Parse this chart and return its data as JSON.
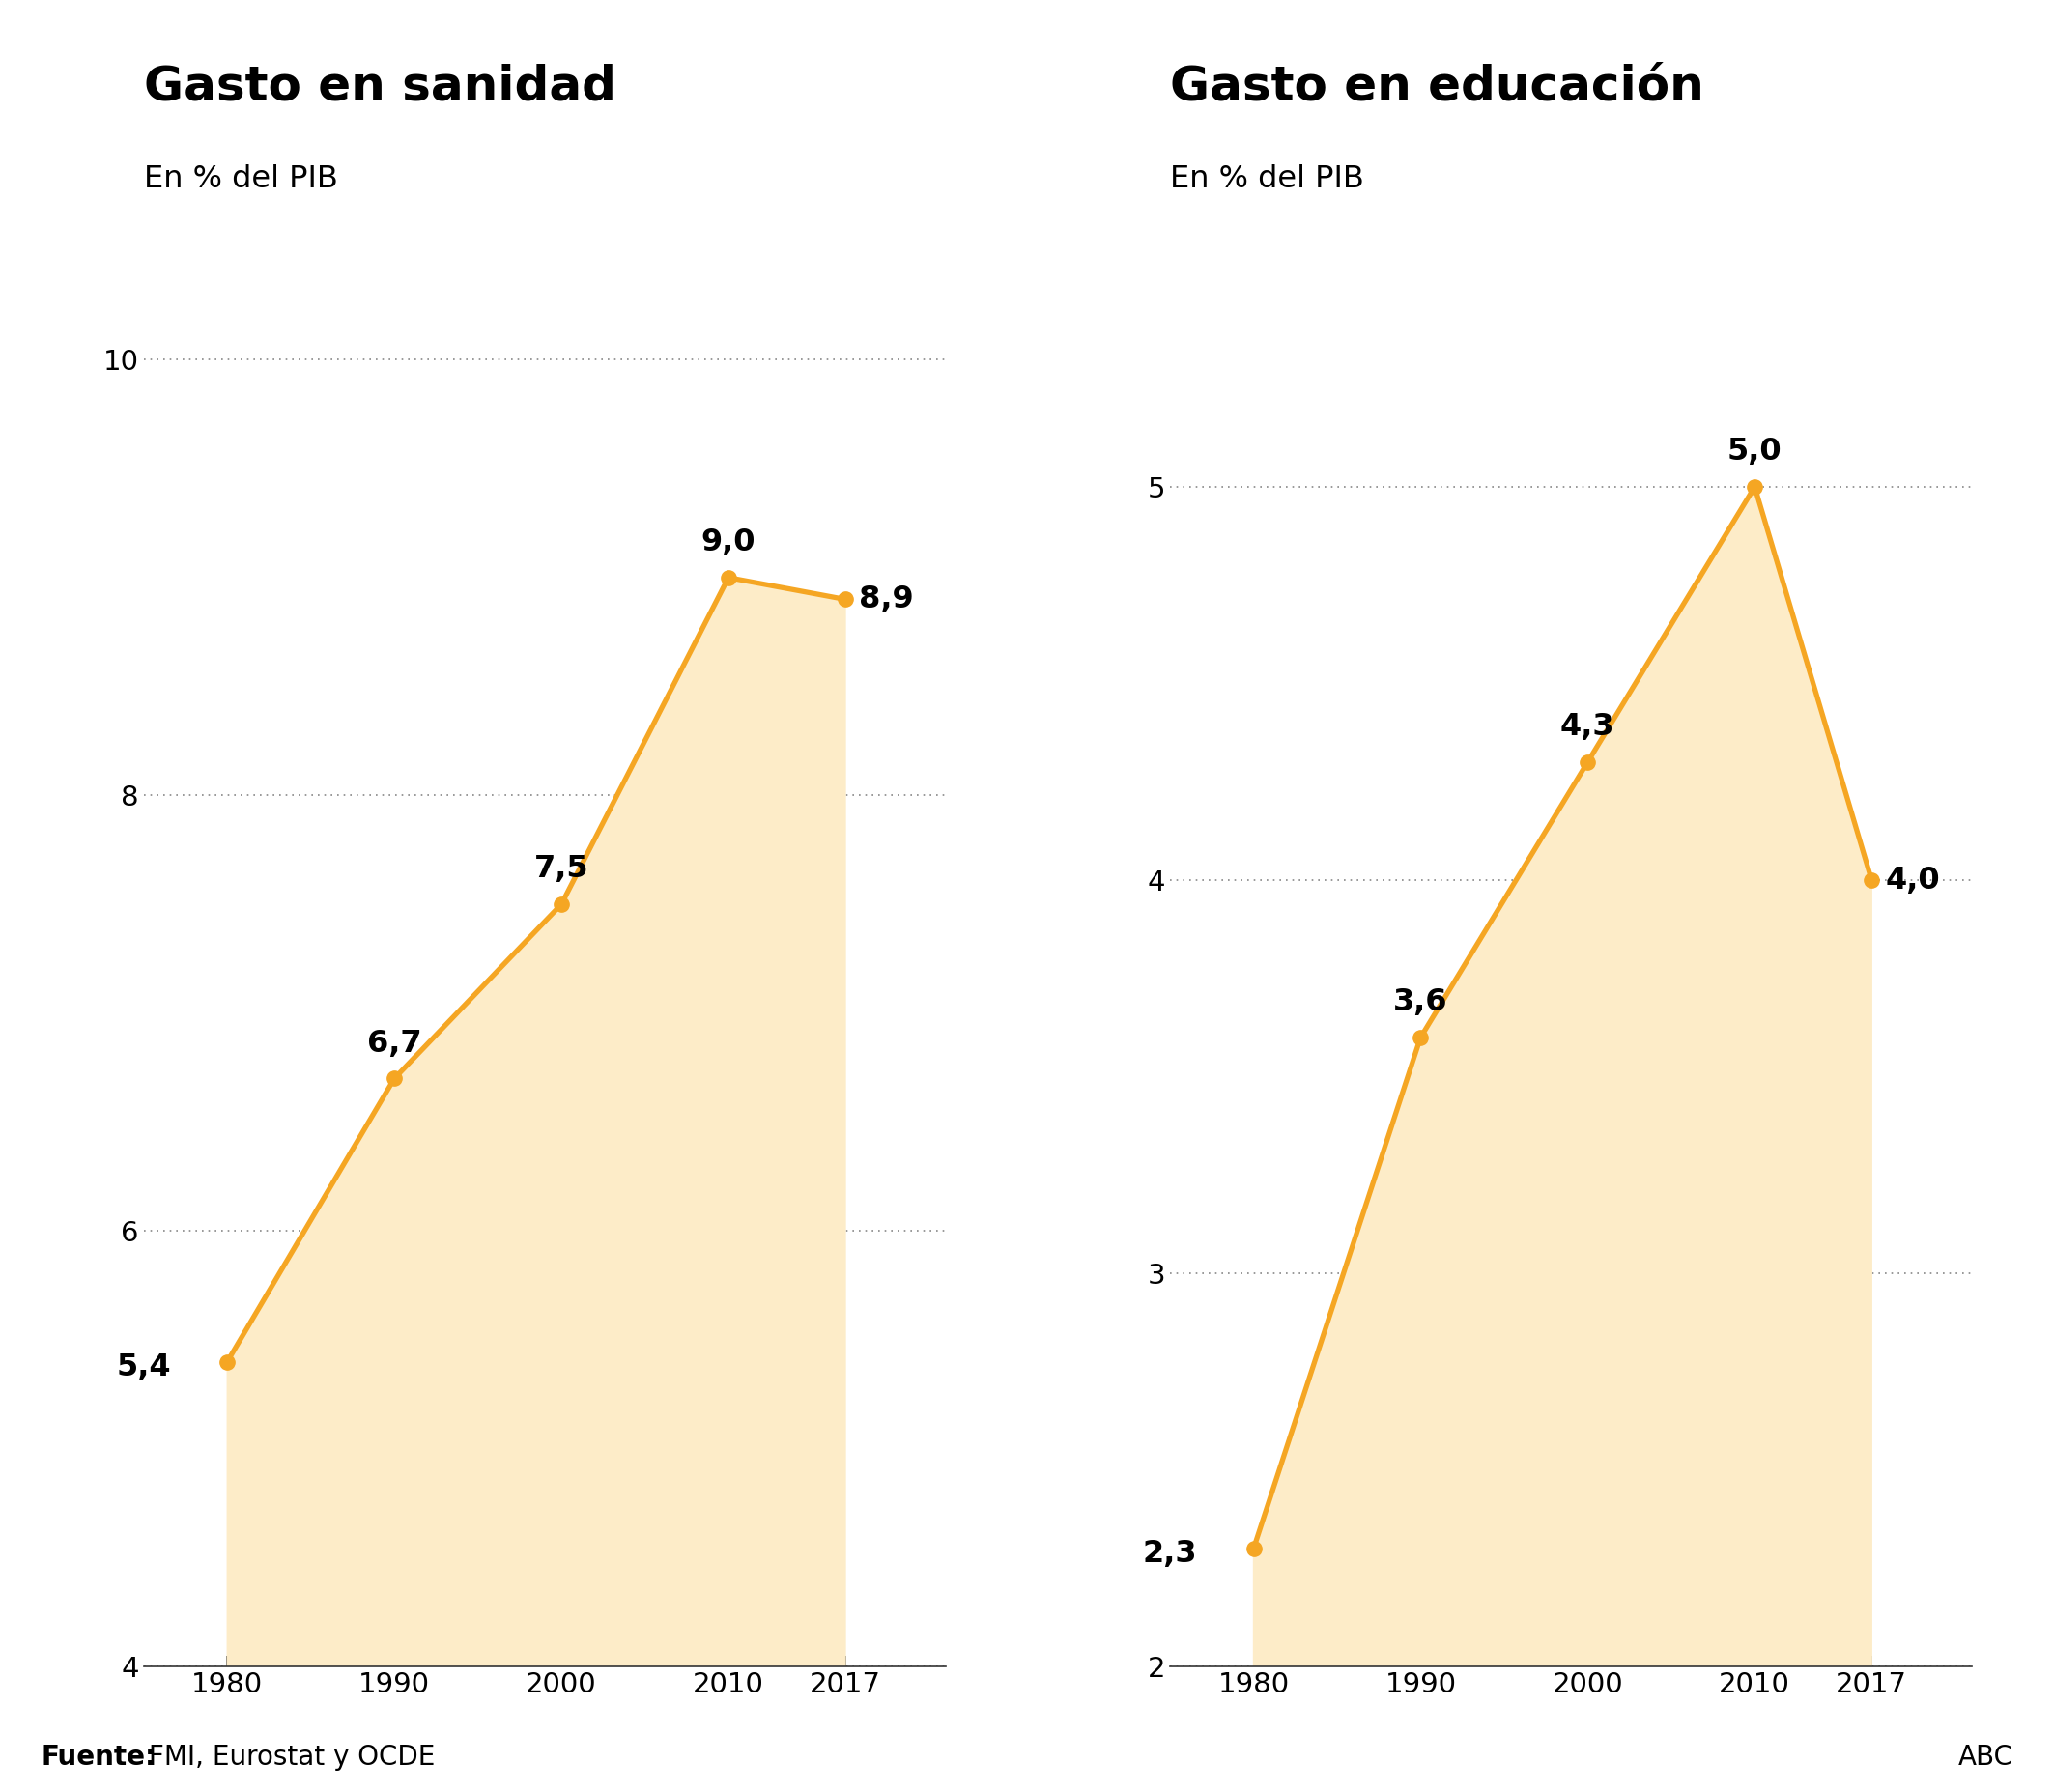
{
  "chart1": {
    "title": "Gasto en sanidad",
    "subtitle": "En % del PIB",
    "years": [
      1980,
      1990,
      2000,
      2010,
      2017
    ],
    "values": [
      5.4,
      6.7,
      7.5,
      9.0,
      8.9
    ],
    "labels": [
      "5,4",
      "6,7",
      "7,5",
      "9,0",
      "8,9"
    ],
    "ylim": [
      4,
      10.5
    ],
    "yticks": [
      4,
      6,
      8,
      10
    ],
    "ytick_labels": [
      "4",
      "6",
      "8",
      "10"
    ]
  },
  "chart2": {
    "title": "Gasto en educación",
    "subtitle": "En % del PIB",
    "years": [
      1980,
      1990,
      2000,
      2010,
      2017
    ],
    "values": [
      2.3,
      3.6,
      4.3,
      5.0,
      4.0
    ],
    "labels": [
      "2,3",
      "3,6",
      "4,3",
      "5,0",
      "4,0"
    ],
    "ylim": [
      2,
      5.6
    ],
    "yticks": [
      2,
      3,
      4,
      5
    ],
    "ytick_labels": [
      "2",
      "3",
      "4",
      "5"
    ]
  },
  "line_color": "#F5A623",
  "fill_color": "#FDECC8",
  "marker_color": "#F5A623",
  "background_color": "#FFFFFF",
  "title_fontsize": 36,
  "subtitle_fontsize": 23,
  "label_fontsize": 23,
  "tick_fontsize": 21,
  "source_bold": "Fuente:",
  "source_rest": " FMI, Eurostat y OCDE",
  "source_fontsize": 20,
  "abc_text": "ABC",
  "abc_fontsize": 20,
  "xticks": [
    1980,
    1990,
    2000,
    2010,
    2017
  ],
  "xtick_labels": [
    "1980",
    "1990",
    "2000",
    "2010",
    "2017"
  ],
  "grid_color": "#888888",
  "grid_linewidth": 1.2,
  "line_width": 3.8,
  "marker_size": 11
}
